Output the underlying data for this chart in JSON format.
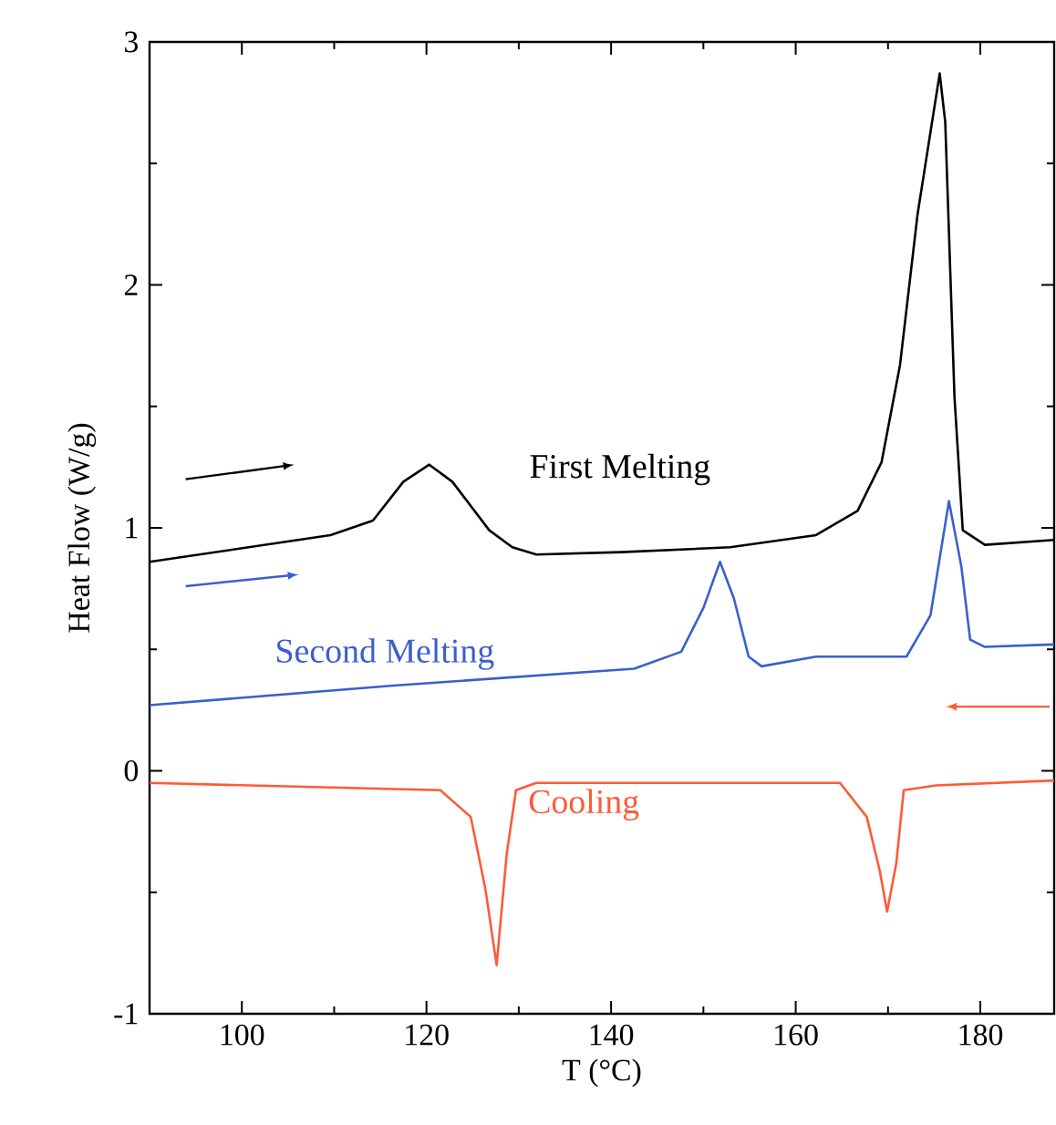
{
  "chart_data": {
    "type": "line",
    "xlabel": "T (°C)",
    "ylabel": "Heat Flow (W/g)",
    "xlim": [
      90,
      188
    ],
    "ylim": [
      -1,
      3
    ],
    "xticks": [
      100,
      120,
      140,
      160,
      180
    ],
    "yticks": [
      -1,
      0,
      1,
      2,
      3
    ],
    "grid": false,
    "legend": false,
    "marker": "none",
    "line_style": "solid",
    "series": [
      {
        "name": "First Melting",
        "color": "#000000",
        "x": [
          90,
          109.6,
          114.2,
          117.5,
          120.3,
          122.8,
          126.8,
          129.3,
          131.9,
          141.1,
          152.9,
          162.2,
          166.7,
          169.3,
          171.3,
          173.2,
          175.6,
          176.2,
          177.2,
          178.1,
          180.5,
          188
        ],
        "values": [
          0.86,
          0.97,
          1.03,
          1.19,
          1.26,
          1.19,
          0.99,
          0.92,
          0.89,
          0.9,
          0.92,
          0.97,
          1.07,
          1.27,
          1.67,
          2.29,
          2.87,
          2.67,
          1.54,
          0.99,
          0.93,
          0.95
        ]
      },
      {
        "name": "Second Melting",
        "color": "#3a5fcd",
        "x": [
          90,
          116.1,
          142.5,
          147.6,
          150,
          151.8,
          153.3,
          154.9,
          156.3,
          162.2,
          172,
          174.6,
          176.6,
          177.95,
          178.9,
          180.5,
          188
        ],
        "values": [
          0.27,
          0.35,
          0.42,
          0.49,
          0.67,
          0.86,
          0.71,
          0.47,
          0.43,
          0.47,
          0.47,
          0.64,
          1.11,
          0.84,
          0.54,
          0.51,
          0.52
        ]
      },
      {
        "name": "Cooling",
        "color": "#ff5a36",
        "x": [
          90,
          121.5,
          124.8,
          126.4,
          127.6,
          128.7,
          129.7,
          131.9,
          164.8,
          167.7,
          169.1,
          169.9,
          170.9,
          171.7,
          175.2,
          188
        ],
        "values": [
          -0.05,
          -0.08,
          -0.19,
          -0.49,
          -0.8,
          -0.34,
          -0.08,
          -0.05,
          -0.05,
          -0.19,
          -0.41,
          -0.58,
          -0.38,
          -0.08,
          -0.06,
          -0.04
        ]
      }
    ]
  }
}
